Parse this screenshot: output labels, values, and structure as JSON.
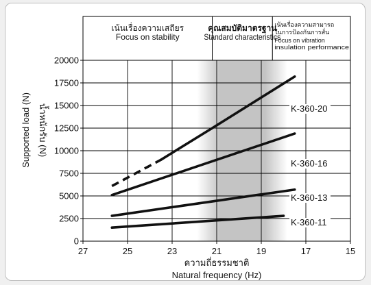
{
  "chart_data": {
    "type": "line",
    "xlabel": "ความถี่ธรรมชาติ",
    "xlabel_en": "Natural frequency (Hz)",
    "ylabel": "Supported load (N)",
    "ylabel_th": "น้ำหนักรับ (N)",
    "xlim": [
      27,
      15
    ],
    "ylim": [
      0,
      20000
    ],
    "x_ticks": [
      "27",
      "25",
      "23",
      "21",
      "19",
      "17",
      "15"
    ],
    "y_ticks": [
      "0",
      "2500",
      "5000",
      "7500",
      "10000",
      "12500",
      "15000",
      "17500",
      "20000"
    ],
    "grid": true,
    "regions": [
      {
        "range": [
          27,
          21.2
        ],
        "label_th": "เน้นเรื่องความเสถียร",
        "label_en": "Focus on stability",
        "shaded": false
      },
      {
        "range": [
          21.2,
          18.5
        ],
        "label_th": "คุณสมบัติมาตรฐาน",
        "label_en": "Standard characteristics",
        "shaded": true
      },
      {
        "range": [
          18.5,
          15
        ],
        "label_th": "เน้นเรื่องความสามารถในการป้องกันการสั่น",
        "label_en": "Focus on vibration insulation performance",
        "shaded": false
      }
    ],
    "series": [
      {
        "name": "K-360-20",
        "points": [
          [
            25.7,
            6100
          ],
          [
            23.5,
            9000
          ],
          [
            21.2,
            12500
          ],
          [
            17.5,
            18200
          ]
        ],
        "dashed_until_x": 23.5
      },
      {
        "name": "K-360-16",
        "points": [
          [
            25.7,
            5100
          ],
          [
            17.5,
            11900
          ]
        ]
      },
      {
        "name": "K-360-13",
        "points": [
          [
            25.7,
            2800
          ],
          [
            17.5,
            5700
          ]
        ]
      },
      {
        "name": "K-360-11",
        "points": [
          [
            25.7,
            1500
          ],
          [
            18.0,
            2800
          ]
        ]
      }
    ],
    "colors": {
      "line": "#111111",
      "shade": "#c8c8c8",
      "grid": "#000000"
    }
  }
}
